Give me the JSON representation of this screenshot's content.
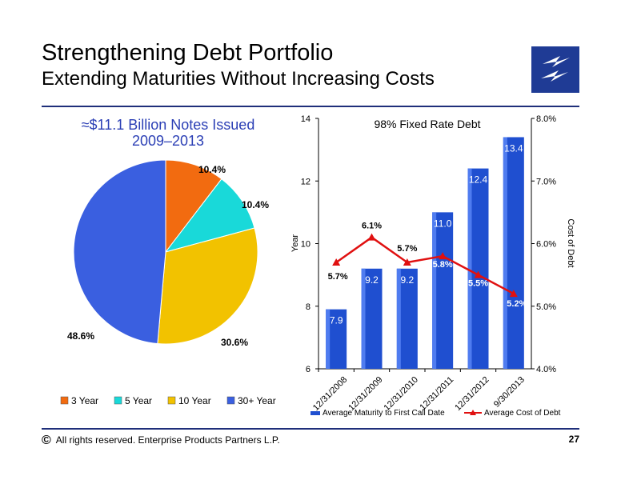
{
  "header": {
    "title": "Strengthening Debt Portfolio",
    "subtitle": "Extending Maturities Without Increasing Costs"
  },
  "logo": {
    "icon": "lightning-bolt-logo",
    "color": "#1f3b95"
  },
  "footer": {
    "copyright_symbol": "©",
    "text": "All rights reserved. Enterprise Products Partners L.P.",
    "page_number": "27"
  },
  "chart_data": [
    {
      "type": "pie",
      "title": "≈$11.1 Billion Notes Issued 2009–2013",
      "title_lines": [
        "≈$11.1 Billion Notes Issued",
        "2009–2013"
      ],
      "slices": [
        {
          "name": "3 Year",
          "value": 10.4,
          "label": "10.4%",
          "color": "#f26b10"
        },
        {
          "name": "5 Year",
          "value": 10.4,
          "label": "10.4%",
          "color": "#19d9d9"
        },
        {
          "name": "10 Year",
          "value": 30.6,
          "label": "30.6%",
          "color": "#f2c200"
        },
        {
          "name": "30+ Year",
          "value": 48.6,
          "label": "48.6%",
          "color": "#3a5fe0"
        }
      ],
      "legend_position": "bottom"
    },
    {
      "type": "bar",
      "title": "98% Fixed Rate Debt",
      "categories": [
        "12/31/2008",
        "12/31/2009",
        "12/31/2010",
        "12/31/2011",
        "12/31/2012",
        "9/30/2013"
      ],
      "series": [
        {
          "name": "Average Maturity to First Call Date",
          "type": "bar",
          "axis": "left",
          "values": [
            7.9,
            9.2,
            9.2,
            11.0,
            12.4,
            13.4
          ],
          "labels": [
            "7.9",
            "9.2",
            "9.2",
            "11.0",
            "12.4",
            "13.4"
          ],
          "color": "#1f4fd0"
        },
        {
          "name": "Average Cost of Debt",
          "type": "line",
          "axis": "right",
          "values": [
            5.7,
            6.1,
            5.7,
            5.8,
            5.5,
            5.2
          ],
          "labels": [
            "5.7%",
            "6.1%",
            "5.7%",
            "5.8%",
            "5.5%",
            "5.2%"
          ],
          "color": "#e01010"
        }
      ],
      "ylabel": "Year",
      "ylim": [
        6,
        14
      ],
      "yticks": [
        "6",
        "8",
        "10",
        "12",
        "14"
      ],
      "y2label": "Cost of Debt",
      "y2lim": [
        4.0,
        8.0
      ],
      "y2ticks": [
        "4.0%",
        "5.0%",
        "6.0%",
        "7.0%",
        "8.0%"
      ],
      "grid": false,
      "legend_position": "bottom"
    }
  ]
}
